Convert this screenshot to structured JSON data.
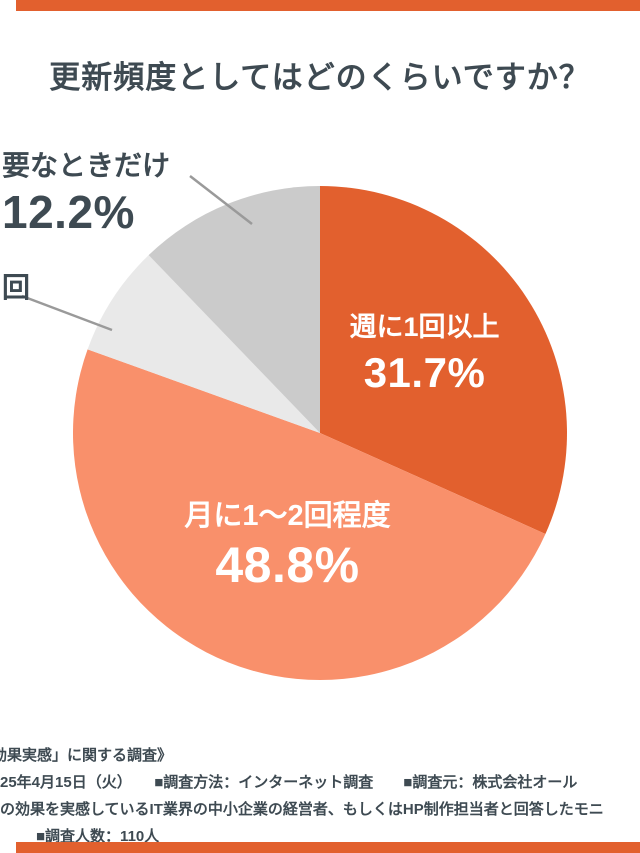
{
  "page": {
    "accent_color": "#E2602E",
    "text_color": "#3E4A52",
    "background": "#FFFFFF"
  },
  "chart_data": {
    "type": "pie",
    "title": "更新頻度としてはどのくらいですか？",
    "unit": "%",
    "direction": "clockwise",
    "start_angle_deg": 0,
    "legend_position": "none",
    "slices": [
      {
        "label": "週に1回以上",
        "value": 31.7,
        "display_pct": "31.7%",
        "color": "#E2602E",
        "label_color": "#FFFFFF",
        "placement": "inside"
      },
      {
        "label": "月に1〜2回程度",
        "value": 48.8,
        "display_pct": "48.8%",
        "color": "#F9906B",
        "label_color": "#FFFFFF",
        "placement": "inside"
      },
      {
        "label": "回",
        "value": 7.3,
        "display_pct": "",
        "color": "#E9E9E9",
        "label_color": "#3E4A52",
        "placement": "outside"
      },
      {
        "label": "要なときだけ",
        "value": 12.2,
        "display_pct": "12.2%",
        "color": "#CBCBCB",
        "label_color": "#3E4A52",
        "placement": "outside"
      }
    ]
  },
  "footer": {
    "lines": [
      "効果実感」に関する調査》",
      "25年4月15日（火）　　■調査方法：インターネット調査　　■調査元：株式会社オール",
      "の効果を実感しているIT業界の中小企業の経営者、もしくはHP制作担当者と回答したモニ",
      "■調査人数：110人"
    ]
  }
}
